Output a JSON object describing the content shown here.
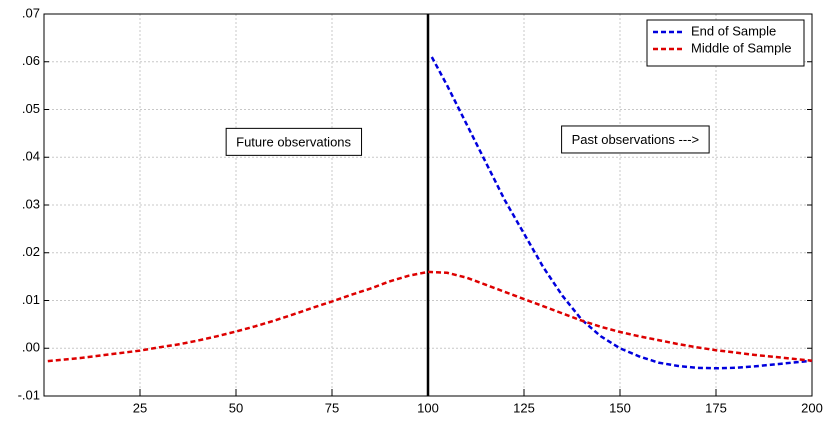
{
  "chart_data": {
    "type": "line",
    "xlim": [
      0,
      200
    ],
    "xticks": [
      25,
      50,
      75,
      100,
      125,
      150,
      175,
      200
    ],
    "ylim": [
      -0.01,
      0.07
    ],
    "yticks": [
      {
        "value": -0.01,
        "label": "-.01"
      },
      {
        "value": 0,
        "label": ".00"
      },
      {
        "value": 0.01,
        "label": ".01"
      },
      {
        "value": 0.02,
        "label": ".02"
      },
      {
        "value": 0.03,
        "label": ".03"
      },
      {
        "value": 0.04,
        "label": ".04"
      },
      {
        "value": 0.05,
        "label": ".05"
      },
      {
        "value": 0.06,
        "label": ".06"
      },
      {
        "value": 0.07,
        "label": ".07"
      }
    ],
    "grid": true,
    "legend": "upper right",
    "vline": 100,
    "annotations": [
      {
        "text": "Future observations",
        "x": 65,
        "y": 0.043
      },
      {
        "text": "Past observations --->",
        "x": 154,
        "y": 0.0435
      }
    ],
    "series": [
      {
        "name": "End of Sample",
        "color": "#0000dd",
        "x": [
          101,
          105,
          110,
          115,
          120,
          125,
          130,
          135,
          140,
          145,
          150,
          155,
          160,
          165,
          170,
          175,
          180,
          185,
          190,
          195,
          200
        ],
        "values": [
          0.061,
          0.055,
          0.047,
          0.039,
          0.031,
          0.024,
          0.017,
          0.011,
          0.006,
          0.0025,
          0.0,
          -0.0017,
          -0.003,
          -0.0037,
          -0.0041,
          -0.0042,
          -0.0041,
          -0.0038,
          -0.0034,
          -0.003,
          -0.0026
        ]
      },
      {
        "name": "Middle of Sample",
        "color": "#dd0000",
        "x": [
          1,
          5,
          10,
          15,
          20,
          25,
          30,
          35,
          40,
          45,
          50,
          55,
          60,
          65,
          70,
          75,
          80,
          85,
          90,
          95,
          100,
          105,
          110,
          115,
          120,
          125,
          130,
          135,
          140,
          145,
          150,
          155,
          160,
          165,
          170,
          175,
          180,
          185,
          190,
          195,
          200
        ],
        "values": [
          -0.0027,
          -0.0024,
          -0.002,
          -0.0015,
          -0.001,
          -0.0005,
          0.0002,
          0.0008,
          0.0016,
          0.0025,
          0.0035,
          0.0046,
          0.0058,
          0.0071,
          0.0085,
          0.0098,
          0.0112,
          0.0125,
          0.014,
          0.0152,
          0.016,
          0.0158,
          0.0148,
          0.0133,
          0.0118,
          0.0103,
          0.0088,
          0.0073,
          0.0058,
          0.0045,
          0.0034,
          0.0025,
          0.0017,
          0.0009,
          0.0002,
          -0.0004,
          -0.0009,
          -0.0014,
          -0.0018,
          -0.0022,
          -0.0026
        ]
      }
    ]
  }
}
